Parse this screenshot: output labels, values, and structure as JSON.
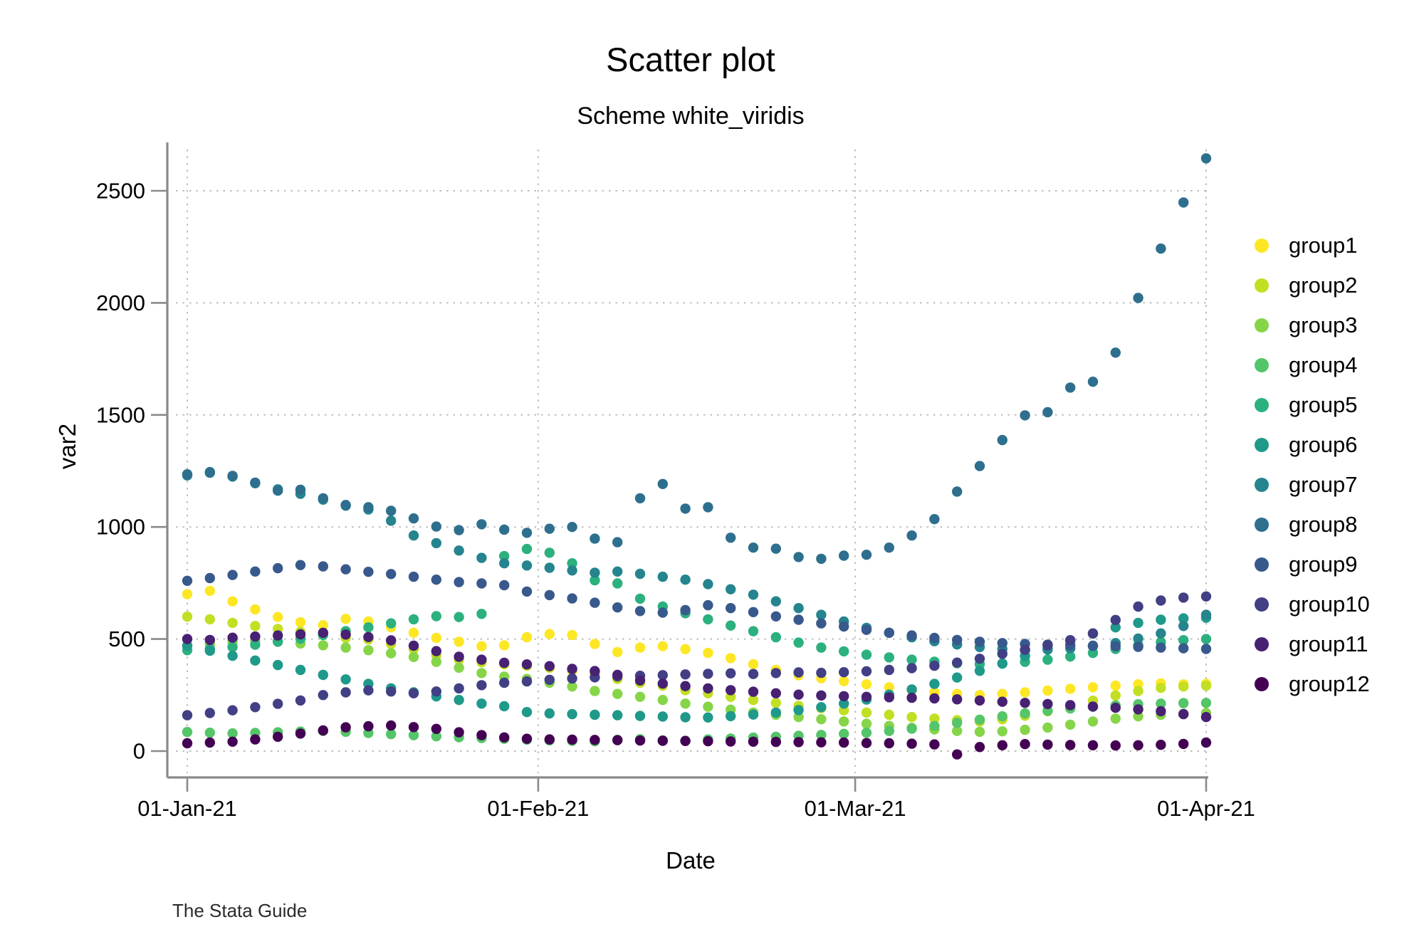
{
  "title": "Scatter plot",
  "subtitle": "Scheme white_viridis",
  "source_note": "The Stata Guide",
  "colors": {
    "background": "#ffffff",
    "axis_line": "#8a8a8a",
    "gridline": "#bdbdbd",
    "text": "#000000"
  },
  "chart_data": {
    "type": "scatter",
    "title": "Scatter plot",
    "subtitle": "Scheme white_viridis",
    "xlabel": "Date",
    "ylabel": "var2",
    "grid": true,
    "legend_position": "right",
    "x_unit": "days since 01-Jan-21",
    "x_tick_labels": [
      "01-Jan-21",
      "01-Feb-21",
      "01-Mar-21",
      "01-Apr-21"
    ],
    "x_tick_days": [
      0,
      31,
      59,
      90
    ],
    "y_ticks": [
      0,
      500,
      1000,
      1500,
      2000,
      2500
    ],
    "ylim": [
      -60,
      2720
    ],
    "days": [
      0,
      2,
      4,
      6,
      8,
      10,
      12,
      14,
      16,
      18,
      20,
      22,
      24,
      26,
      28,
      30,
      32,
      34,
      36,
      38,
      40,
      42,
      44,
      46,
      48,
      50,
      52,
      54,
      56,
      58,
      60,
      62,
      64,
      66,
      68,
      70,
      72,
      74,
      76,
      78,
      80,
      82,
      84,
      86,
      88,
      90
    ],
    "series": [
      {
        "name": "group1",
        "color": "#fde725",
        "values": [
          700,
          715,
          668,
          632,
          598,
          575,
          562,
          590,
          578,
          552,
          528,
          505,
          488,
          468,
          472,
          508,
          522,
          518,
          478,
          442,
          462,
          468,
          455,
          438,
          415,
          388,
          362,
          338,
          325,
          312,
          298,
          285,
          272,
          262,
          255,
          250,
          255,
          262,
          270,
          278,
          285,
          292,
          298,
          302,
          298,
          300
        ]
      },
      {
        "name": "group2",
        "color": "#c2df23",
        "values": [
          600,
          588,
          572,
          558,
          545,
          532,
          518,
          505,
          498,
          478,
          455,
          428,
          408,
          396,
          388,
          381,
          372,
          360,
          345,
          322,
          305,
          292,
          272,
          258,
          242,
          228,
          215,
          202,
          192,
          182,
          172,
          162,
          152,
          145,
          138,
          132,
          142,
          158,
          178,
          200,
          225,
          248,
          268,
          282,
          288,
          292
        ]
      },
      {
        "name": "group3",
        "color": "#86d549",
        "values": [
          470,
          478,
          488,
          494,
          490,
          480,
          472,
          462,
          450,
          436,
          420,
          398,
          372,
          348,
          332,
          322,
          305,
          288,
          268,
          255,
          242,
          228,
          212,
          198,
          185,
          172,
          162,
          152,
          142,
          132,
          122,
          112,
          104,
          97,
          90,
          86,
          88,
          95,
          105,
          118,
          132,
          145,
          155,
          162,
          166,
          170
        ]
      },
      {
        "name": "group4",
        "color": "#54c568",
        "values": [
          85,
          82,
          79,
          81,
          84,
          87,
          90,
          86,
          81,
          76,
          71,
          66,
          62,
          58,
          55,
          51,
          48,
          46,
          44,
          50,
          53,
          48,
          46,
          52,
          56,
          60,
          64,
          68,
          72,
          77,
          82,
          90,
          100,
          112,
          126,
          140,
          155,
          168,
          180,
          190,
          198,
          204,
          209,
          212,
          214,
          215
        ]
      },
      {
        "name": "group5",
        "color": "#2cb17e",
        "values": [
          450,
          456,
          464,
          475,
          488,
          502,
          518,
          535,
          552,
          570,
          588,
          602,
          598,
          612,
          870,
          902,
          885,
          838,
          762,
          748,
          680,
          645,
          615,
          588,
          560,
          535,
          508,
          484,
          462,
          445,
          430,
          418,
          408,
          399,
          392,
          388,
          391,
          398,
          408,
          422,
          438,
          456,
          472,
          486,
          495,
          500
        ]
      },
      {
        "name": "group6",
        "color": "#1f998a",
        "values": [
          470,
          448,
          425,
          404,
          384,
          362,
          340,
          320,
          300,
          280,
          262,
          244,
          228,
          212,
          200,
          174,
          168,
          165,
          162,
          160,
          157,
          154,
          151,
          150,
          156,
          163,
          172,
          183,
          196,
          212,
          230,
          252,
          275,
          300,
          328,
          358,
          390,
          424,
          458,
          492,
          524,
          552,
          572,
          586,
          592,
          595
        ]
      },
      {
        "name": "group7",
        "color": "#25848e",
        "values": [
          1230,
          1242,
          1225,
          1195,
          1168,
          1148,
          1122,
          1095,
          1078,
          1028,
          962,
          928,
          895,
          862,
          838,
          828,
          818,
          806,
          796,
          801,
          791,
          778,
          765,
          745,
          722,
          698,
          668,
          638,
          608,
          578,
          550,
          528,
          508,
          490,
          476,
          464,
          456,
          451,
          453,
          458,
          468,
          482,
          502,
          525,
          558,
          608
        ]
      },
      {
        "name": "group8",
        "color": "#2e6f8e",
        "values": [
          1235,
          1245,
          1228,
          1198,
          1162,
          1166,
          1128,
          1098,
          1088,
          1072,
          1038,
          1002,
          986,
          1012,
          988,
          974,
          992,
          1000,
          948,
          932,
          1128,
          1192,
          1082,
          1088,
          952,
          908,
          903,
          866,
          858,
          872,
          876,
          908,
          962,
          1035,
          1158,
          1272,
          1388,
          1498,
          1512,
          1622,
          1648,
          1778,
          2022,
          2242,
          2448,
          2645
        ]
      },
      {
        "name": "group9",
        "color": "#38598c",
        "values": [
          760,
          772,
          786,
          801,
          816,
          830,
          824,
          811,
          800,
          790,
          778,
          765,
          754,
          748,
          740,
          712,
          696,
          681,
          662,
          641,
          625,
          618,
          629,
          651,
          638,
          620,
          601,
          586,
          570,
          556,
          541,
          528,
          516,
          505,
          496,
          488,
          482,
          478,
          475,
          472,
          470,
          468,
          465,
          462,
          459,
          456
        ]
      },
      {
        "name": "group10",
        "color": "#423f85",
        "values": [
          160,
          170,
          182,
          196,
          211,
          226,
          250,
          262,
          271,
          266,
          258,
          266,
          280,
          294,
          305,
          311,
          318,
          324,
          329,
          333,
          336,
          339,
          342,
          345,
          347,
          344,
          348,
          351,
          349,
          352,
          356,
          362,
          370,
          381,
          395,
          412,
          434,
          452,
          472,
          495,
          525,
          585,
          645,
          672,
          685,
          690
        ]
      },
      {
        "name": "group11",
        "color": "#482173",
        "values": [
          500,
          496,
          506,
          511,
          516,
          521,
          528,
          520,
          509,
          494,
          470,
          446,
          421,
          408,
          394,
          387,
          379,
          367,
          357,
          340,
          315,
          301,
          290,
          280,
          272,
          265,
          258,
          252,
          248,
          245,
          242,
          240,
          238,
          235,
          231,
          226,
          220,
          215,
          210,
          205,
          199,
          193,
          186,
          178,
          165,
          152
        ]
      },
      {
        "name": "group12",
        "color": "#440154",
        "values": [
          35,
          38,
          42,
          52,
          64,
          78,
          92,
          106,
          111,
          114,
          107,
          99,
          84,
          71,
          61,
          55,
          52,
          51,
          50,
          49,
          47,
          46,
          45,
          44,
          43,
          42,
          41,
          40,
          39,
          38,
          36,
          35,
          33,
          30,
          -15,
          18,
          26,
          31,
          29,
          27,
          26,
          25,
          26,
          28,
          32,
          38
        ]
      }
    ]
  }
}
